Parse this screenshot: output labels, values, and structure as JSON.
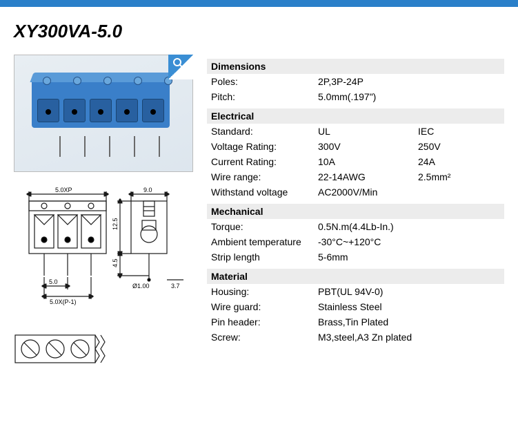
{
  "title": "XY300VA-5.0",
  "sections": {
    "dimensions": {
      "header": "Dimensions",
      "rows": [
        {
          "label": "Poles:",
          "v1": "2P,3P-24P",
          "v2": ""
        },
        {
          "label": "Pitch:",
          "v1": "5.0mm(.197\")",
          "v2": ""
        }
      ]
    },
    "electrical": {
      "header": "Electrical",
      "rows": [
        {
          "label": "Standard:",
          "v1": "UL",
          "v2": "IEC"
        },
        {
          "label": "Voltage Rating:",
          "v1": "300V",
          "v2": "250V"
        },
        {
          "label": "Current Rating:",
          "v1": "10A",
          "v2": "24A"
        },
        {
          "label": "Wire range:",
          "v1": "22-14AWG",
          "v2": "2.5mm²"
        },
        {
          "label": "Withstand voltage",
          "v1": "AC2000V/Min",
          "v2": ""
        }
      ]
    },
    "mechanical": {
      "header": "Mechanical",
      "rows": [
        {
          "label": "Torque:",
          "v1": "0.5N.m(4.4Lb-In.)",
          "v2": ""
        },
        {
          "label": "Ambient temperature",
          "v1": "-30°C~+120°C",
          "v2": ""
        },
        {
          "label": "Strip length",
          "v1": "5-6mm",
          "v2": ""
        }
      ]
    },
    "material": {
      "header": "Material",
      "rows": [
        {
          "label": "Housing:",
          "v1": "PBT(UL 94V-0)",
          "v2": ""
        },
        {
          "label": "Wire guard:",
          "v1": "Stainless Steel",
          "v2": ""
        },
        {
          "label": "Pin header:",
          "v1": "Brass,Tin Plated",
          "v2": ""
        },
        {
          "label": "Screw:",
          "v1": "M3,steel,A3 Zn plated",
          "v2": ""
        }
      ]
    }
  },
  "drawing": {
    "dim_top": "5.0XP",
    "dim_side_w": "9.0",
    "dim_side_h": "12.5",
    "dim_pin_h": "4.5",
    "dim_pitch": "5.0",
    "dim_pitch_span": "5.0X(P-1)",
    "dim_pin_dia": "Ø1.00",
    "dim_lead": "3.7"
  },
  "colors": {
    "accent": "#2a7fc9",
    "header_bg": "#ececec",
    "product_blue": "#3a7fc9",
    "drawing_line": "#1a1a1a"
  }
}
